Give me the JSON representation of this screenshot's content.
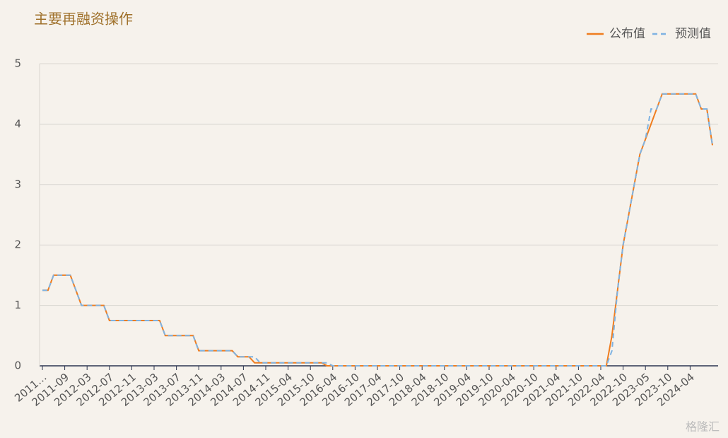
{
  "chart_data": {
    "type": "line",
    "title": "主要再融资操作",
    "watermark": "格隆汇",
    "legend": "top-right",
    "categories": [
      "2011…",
      null,
      null,
      null,
      "2011-09",
      null,
      null,
      null,
      "2012-03",
      null,
      null,
      null,
      "2012-07",
      null,
      null,
      null,
      "2012-11",
      null,
      null,
      null,
      "2013-03",
      null,
      null,
      null,
      "2013-07",
      null,
      null,
      null,
      "2013-11",
      null,
      null,
      null,
      "2014-03",
      null,
      null,
      null,
      "2014-07",
      null,
      null,
      null,
      "2014-11",
      null,
      null,
      null,
      "2015-04",
      null,
      null,
      null,
      "2015-10",
      null,
      null,
      null,
      "2016-04",
      null,
      null,
      null,
      "2016-10",
      null,
      null,
      null,
      "2017-04",
      null,
      null,
      null,
      "2017-10",
      null,
      null,
      null,
      "2018-04",
      null,
      null,
      null,
      "2018-10",
      null,
      null,
      null,
      "2019-04",
      null,
      null,
      null,
      "2019-10",
      null,
      null,
      null,
      "2020-04",
      null,
      null,
      null,
      "2020-10",
      null,
      null,
      null,
      "2021-04",
      null,
      null,
      null,
      "2021-10",
      null,
      null,
      null,
      "2022-04",
      null,
      null,
      null,
      "2022-10",
      null,
      null,
      null,
      "2023-05",
      null,
      null,
      null,
      "2023-10",
      null,
      null,
      null,
      "2024-04",
      null,
      null,
      null,
      null
    ],
    "series": [
      {
        "name": "公布值",
        "color": "#ef7d1f",
        "dashed": false,
        "values": [
          1.25,
          1.25,
          1.5,
          1.5,
          1.5,
          1.5,
          1.25,
          1,
          1,
          1,
          1,
          1,
          0.75,
          0.75,
          0.75,
          0.75,
          0.75,
          0.75,
          0.75,
          0.75,
          0.75,
          0.75,
          0.5,
          0.5,
          0.5,
          0.5,
          0.5,
          0.5,
          0.25,
          0.25,
          0.25,
          0.25,
          0.25,
          0.25,
          0.25,
          0.15,
          0.15,
          0.15,
          0.05,
          0.05,
          0.05,
          0.05,
          0.05,
          0.05,
          0.05,
          0.05,
          0.05,
          0.05,
          0.05,
          0.05,
          0.05,
          0,
          0,
          0,
          0,
          0,
          0,
          0,
          0,
          0,
          0,
          0,
          0,
          0,
          0,
          0,
          0,
          0,
          0,
          0,
          0,
          0,
          0,
          0,
          0,
          0,
          0,
          0,
          0,
          0,
          0,
          0,
          0,
          0,
          0,
          0,
          0,
          0,
          0,
          0,
          0,
          0,
          0,
          0,
          0,
          0,
          0,
          0,
          0,
          0,
          0,
          0,
          0.5,
          1.25,
          2,
          2.5,
          3,
          3.5,
          3.75,
          4,
          4.25,
          4.5,
          4.5,
          4.5,
          4.5,
          4.5,
          4.5,
          4.5,
          4.25,
          4.25,
          3.65
        ]
      },
      {
        "name": "预测值",
        "color": "#7fb3e2",
        "dashed": true,
        "values": [
          1.25,
          1.25,
          1.5,
          1.5,
          1.5,
          1.5,
          1.25,
          1,
          1,
          1,
          1,
          1,
          0.75,
          0.75,
          0.75,
          0.75,
          0.75,
          0.75,
          0.75,
          0.75,
          0.75,
          0.75,
          0.5,
          0.5,
          0.5,
          0.5,
          0.5,
          0.5,
          0.25,
          0.25,
          0.25,
          0.25,
          0.25,
          0.25,
          0.25,
          0.15,
          0.15,
          0.15,
          0.15,
          0.05,
          0.05,
          0.05,
          0.05,
          0.05,
          0.05,
          0.05,
          0.05,
          0.05,
          0.05,
          0.05,
          0.05,
          0.05,
          0,
          0,
          0,
          0,
          0,
          0,
          0,
          0,
          0,
          0,
          0,
          0,
          0,
          0,
          0,
          0,
          0,
          0,
          0,
          0,
          0,
          0,
          0,
          0,
          0,
          0,
          0,
          0,
          0,
          0,
          0,
          0,
          0,
          0,
          0,
          0,
          0,
          0,
          0,
          0,
          0,
          0,
          0,
          0,
          0,
          0,
          0,
          0,
          0,
          0,
          0.25,
          1.25,
          2,
          2.5,
          3,
          3.5,
          3.75,
          4.25,
          4.25,
          4.5,
          4.5,
          4.5,
          4.5,
          4.5,
          4.5,
          4.5,
          4.25,
          4.25,
          3.65
        ]
      }
    ],
    "ylim": [
      0,
      5
    ],
    "yticks": [
      0,
      1,
      2,
      3,
      4,
      5
    ],
    "grid": true
  }
}
